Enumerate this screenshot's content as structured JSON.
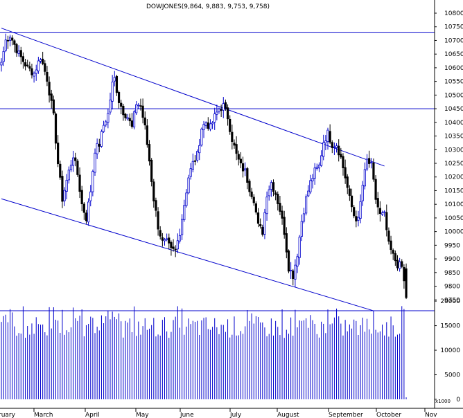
{
  "chart_data": {
    "type": "ohlc",
    "title": "DOWJONES(9,864, 9,883, 9,753, 9,758)",
    "price_axis": {
      "ylim": [
        9700,
        10800
      ],
      "ticks": [
        9750,
        9800,
        9850,
        9900,
        9950,
        10000,
        10050,
        10100,
        10150,
        10200,
        10250,
        10300,
        10350,
        10400,
        10450,
        10500,
        10550,
        10600,
        10650,
        10700,
        10750,
        10800
      ],
      "tick_labels": [
        "9750",
        "9800",
        "9850",
        "9900",
        "9950",
        "10000",
        "10050",
        "10100",
        "10150",
        "10200",
        "10250",
        "10300",
        "10350",
        "10400",
        "10450",
        "10500",
        "10550",
        "10600",
        "10650",
        "10700",
        "10750",
        "10800"
      ]
    },
    "volume_axis": {
      "unit_label": "x1000",
      "ylim": [
        0,
        21000
      ],
      "ticks": [
        0,
        5000,
        10000,
        15000,
        20000
      ],
      "tick_labels": [
        "0",
        "5000",
        "10000",
        "15000",
        "20000"
      ]
    },
    "x_axis": {
      "months": [
        "ruary",
        "March",
        "April",
        "May",
        "June",
        "July",
        "August",
        "September",
        "October",
        "Nov"
      ]
    },
    "reference_lines": {
      "horizontal": [
        10730,
        10450,
        9710
      ],
      "trendlines": [
        {
          "name": "upper channel",
          "from": [
            0,
            10745
          ],
          "to": [
            176,
            10240
          ]
        },
        {
          "name": "lower channel",
          "from": [
            0,
            10120
          ],
          "to": [
            171,
            9710
          ]
        }
      ]
    },
    "colors": {
      "up": "#0000cc",
      "down": "#000000",
      "lines": "#0000cc",
      "volume": "#0000cc"
    },
    "grid": false,
    "series": [
      {
        "anchors": [
          [
            0,
            10620
          ],
          [
            2,
            10700
          ],
          [
            4,
            10720
          ],
          [
            8,
            10650
          ],
          [
            12,
            10600
          ],
          [
            15,
            10580
          ],
          [
            18,
            10640
          ],
          [
            21,
            10560
          ],
          [
            24,
            10420
          ],
          [
            26,
            10250
          ],
          [
            28,
            10120
          ],
          [
            31,
            10220
          ],
          [
            33,
            10280
          ],
          [
            35,
            10210
          ],
          [
            37,
            10100
          ],
          [
            39,
            10050
          ],
          [
            41,
            10150
          ],
          [
            43,
            10300
          ],
          [
            45,
            10320
          ],
          [
            47,
            10390
          ],
          [
            49,
            10430
          ],
          [
            51,
            10540
          ],
          [
            52,
            10560
          ],
          [
            54,
            10480
          ],
          [
            56,
            10440
          ],
          [
            58,
            10420
          ],
          [
            60,
            10380
          ],
          [
            62,
            10470
          ],
          [
            64,
            10460
          ],
          [
            66,
            10380
          ],
          [
            68,
            10260
          ],
          [
            70,
            10120
          ],
          [
            72,
            10020
          ],
          [
            74,
            9960
          ],
          [
            76,
            9960
          ],
          [
            78,
            9930
          ],
          [
            80,
            9930
          ],
          [
            82,
            10000
          ],
          [
            84,
            10100
          ],
          [
            86,
            10200
          ],
          [
            88,
            10250
          ],
          [
            90,
            10280
          ],
          [
            92,
            10380
          ],
          [
            94,
            10400
          ],
          [
            96,
            10380
          ],
          [
            98,
            10420
          ],
          [
            100,
            10450
          ],
          [
            102,
            10460
          ],
          [
            104,
            10420
          ],
          [
            106,
            10340
          ],
          [
            108,
            10280
          ],
          [
            110,
            10240
          ],
          [
            112,
            10220
          ],
          [
            114,
            10160
          ],
          [
            116,
            10120
          ],
          [
            118,
            10020
          ],
          [
            120,
            10000
          ],
          [
            122,
            10140
          ],
          [
            124,
            10180
          ],
          [
            126,
            10140
          ],
          [
            128,
            10080
          ],
          [
            130,
            10000
          ],
          [
            132,
            9870
          ],
          [
            134,
            9840
          ],
          [
            136,
            9920
          ],
          [
            138,
            10040
          ],
          [
            140,
            10120
          ],
          [
            142,
            10180
          ],
          [
            144,
            10220
          ],
          [
            146,
            10240
          ],
          [
            148,
            10330
          ],
          [
            150,
            10360
          ],
          [
            152,
            10320
          ],
          [
            154,
            10320
          ],
          [
            156,
            10270
          ],
          [
            158,
            10200
          ],
          [
            160,
            10120
          ],
          [
            162,
            10060
          ],
          [
            164,
            10040
          ],
          [
            166,
            10170
          ],
          [
            168,
            10260
          ],
          [
            170,
            10240
          ],
          [
            172,
            10120
          ],
          [
            174,
            10060
          ],
          [
            176,
            10060
          ],
          [
            178,
            9950
          ],
          [
            180,
            9910
          ],
          [
            182,
            9880
          ],
          [
            184,
            9870
          ],
          [
            186,
            9760
          ]
        ],
        "last_ohlc": [
          9864,
          9883,
          9753,
          9758
        ]
      }
    ]
  }
}
